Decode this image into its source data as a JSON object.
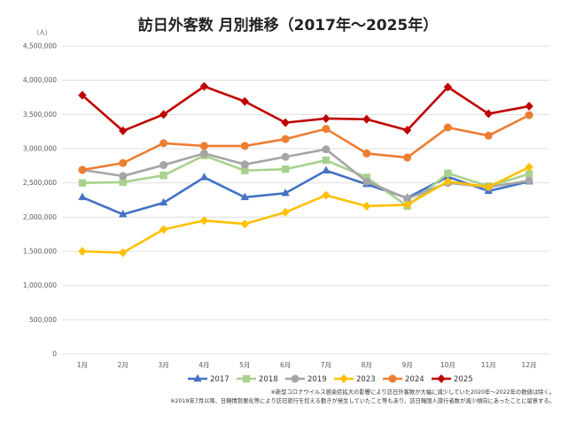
{
  "chart_data": {
    "type": "line",
    "title": "訪日外客数 月別推移（2017年～2025年）",
    "unit_label": "（人）",
    "ylim": [
      0,
      4500000
    ],
    "yticks": [
      "0",
      "500,000",
      "1,000,000",
      "1,500,000",
      "2,000,000",
      "2,500,000",
      "3,000,000",
      "3,500,000",
      "4,000,000",
      "4,500,000"
    ],
    "ytick_values": [
      0,
      500000,
      1000000,
      1500000,
      2000000,
      2500000,
      3000000,
      3500000,
      4000000,
      4500000
    ],
    "categories": [
      "1月",
      "2月",
      "3月",
      "4月",
      "5月",
      "6月",
      "7月",
      "8月",
      "9月",
      "10月",
      "11月",
      "12月"
    ],
    "grid": true,
    "legend_position": "bottom",
    "series": [
      {
        "name": "2017",
        "color": "#4472C4",
        "marker": "triangle",
        "values": [
          2290000,
          2040000,
          2210000,
          2580000,
          2290000,
          2350000,
          2680000,
          2480000,
          2280000,
          2590000,
          2380000,
          2520000
        ]
      },
      {
        "name": "2018",
        "color": "#A9D18E",
        "marker": "square",
        "values": [
          2500000,
          2510000,
          2610000,
          2900000,
          2680000,
          2700000,
          2830000,
          2580000,
          2160000,
          2640000,
          2450000,
          2630000
        ]
      },
      {
        "name": "2019",
        "color": "#A5A5A5",
        "marker": "circle",
        "values": [
          2690000,
          2600000,
          2760000,
          2930000,
          2770000,
          2880000,
          2990000,
          2520000,
          2270000,
          2500000,
          2440000,
          2530000
        ]
      },
      {
        "name": "2023",
        "color": "#FFC000",
        "marker": "diamond",
        "values": [
          1500000,
          1480000,
          1820000,
          1950000,
          1900000,
          2070000,
          2320000,
          2160000,
          2180000,
          2520000,
          2440000,
          2730000
        ]
      },
      {
        "name": "2024",
        "color": "#ED7D31",
        "marker": "circle",
        "values": [
          2690000,
          2790000,
          3080000,
          3040000,
          3040000,
          3140000,
          3290000,
          2930000,
          2870000,
          3310000,
          3190000,
          3490000
        ]
      },
      {
        "name": "2025",
        "color": "#C00000",
        "marker": "diamond",
        "values": [
          3780000,
          3260000,
          3500000,
          3910000,
          3690000,
          3380000,
          3440000,
          3430000,
          3270000,
          3900000,
          3510000,
          3620000
        ]
      }
    ],
    "notes": [
      "※新型コロナウイルス感染症拡大の影響により訪日外客数が大幅に減少していた2020年～2022年の数値は除く。",
      "※2019年7月以降、日韓情勢悪化等により訪日旅行を控える動きが発生していたこと等もあり、訪日韓国人旅行者数が減少傾向にあったことに留意する。"
    ]
  }
}
